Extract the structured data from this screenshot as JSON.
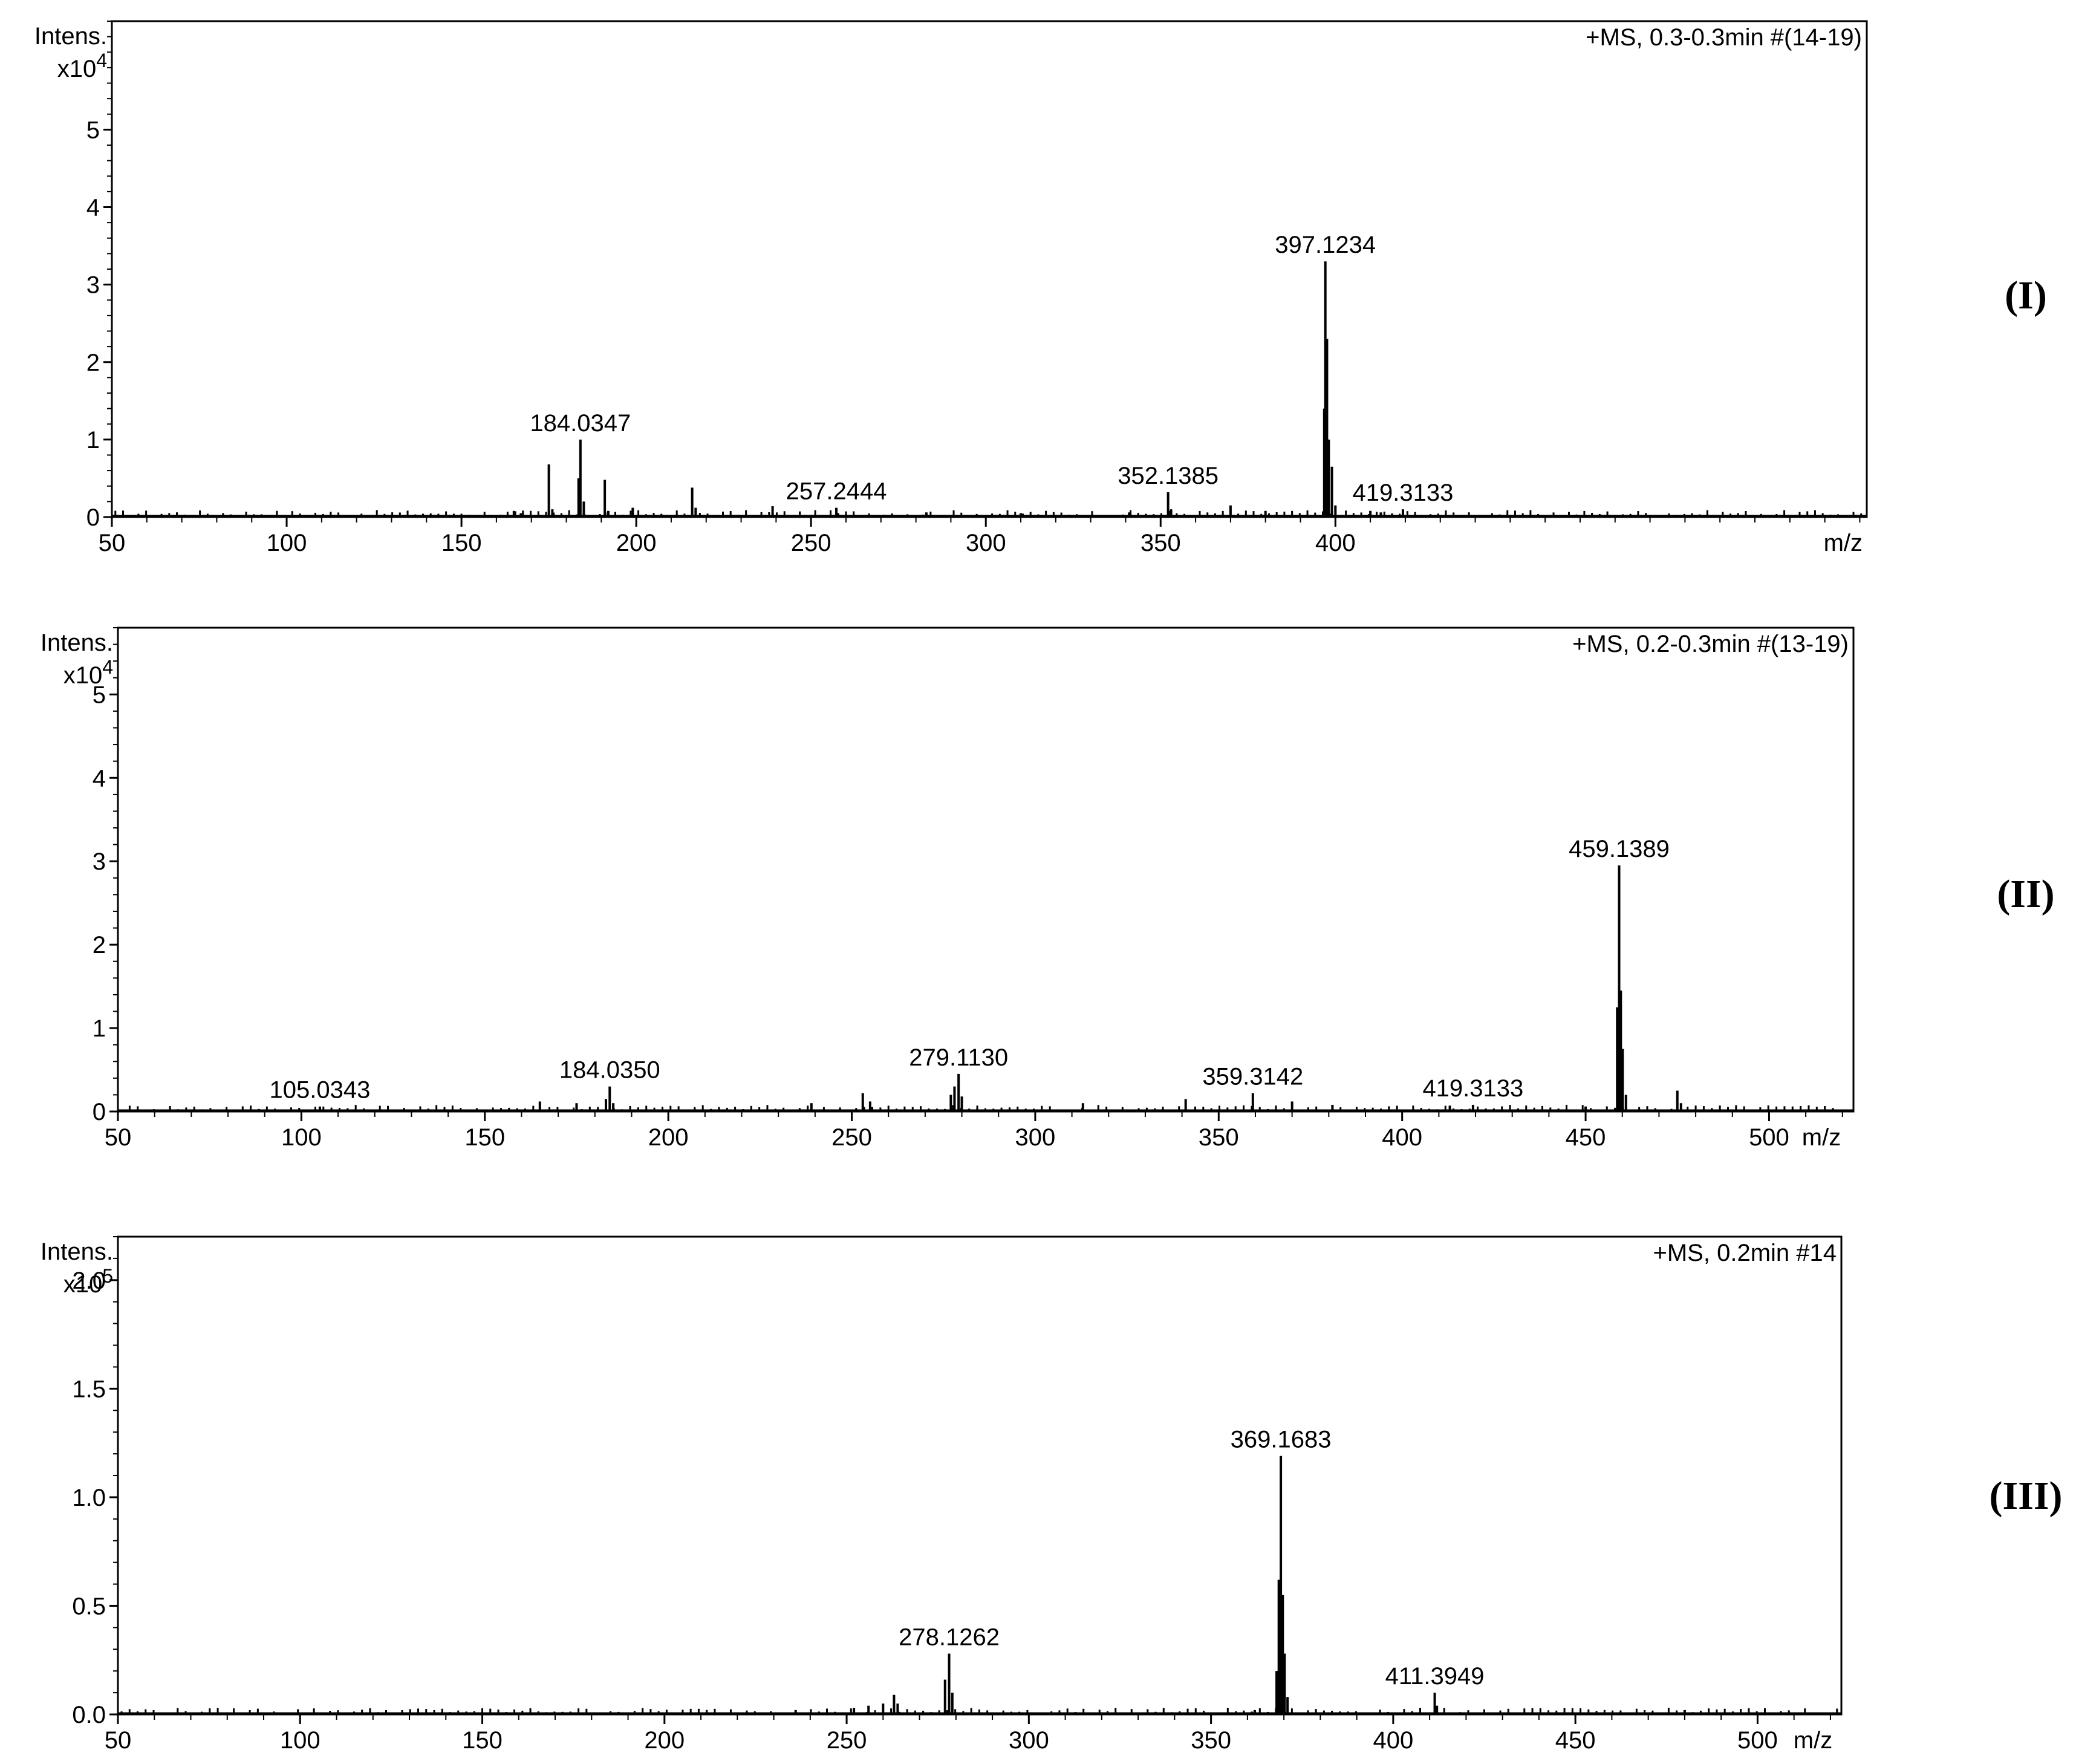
{
  "chart_data": [
    {
      "type": "line",
      "panel_label": "(I)",
      "annotation": "+MS, 0.3-0.3min #(14-19)",
      "ylabel": "Intens.",
      "y_multiplier": "x10",
      "y_exponent": "4",
      "xlabel": "m/z",
      "xlim": [
        50,
        552
      ],
      "ylim": [
        0,
        6.4
      ],
      "x_ticks": [
        50,
        100,
        150,
        200,
        250,
        300,
        350,
        400
      ],
      "x_tick_labels": [
        "50",
        "100",
        "150",
        "200",
        "250",
        "300",
        "350",
        "400"
      ],
      "y_ticks": [
        0,
        1,
        2,
        3,
        4,
        5
      ],
      "y_tick_labels": [
        "0",
        "1",
        "2",
        "3",
        "4",
        "5"
      ],
      "grid": false,
      "peak_labels": [
        {
          "text": "184.0347",
          "x": 184.0347,
          "y": 1.0
        },
        {
          "text": "257.2444",
          "x": 257.2444,
          "y": 0.12
        },
        {
          "text": "352.1385",
          "x": 352.1385,
          "y": 0.32
        },
        {
          "text": "397.1234",
          "x": 397.1234,
          "y": 3.3
        },
        {
          "text": "419.3133",
          "x": 419.3133,
          "y": 0.1
        }
      ],
      "peaks": [
        {
          "x": 165,
          "y": 0.08
        },
        {
          "x": 167,
          "y": 0.05
        },
        {
          "x": 175,
          "y": 0.68
        },
        {
          "x": 176,
          "y": 0.1
        },
        {
          "x": 183.5,
          "y": 0.5
        },
        {
          "x": 184.0347,
          "y": 1.0
        },
        {
          "x": 185,
          "y": 0.2
        },
        {
          "x": 191,
          "y": 0.48
        },
        {
          "x": 192,
          "y": 0.08
        },
        {
          "x": 199,
          "y": 0.12
        },
        {
          "x": 216,
          "y": 0.38
        },
        {
          "x": 217,
          "y": 0.12
        },
        {
          "x": 239,
          "y": 0.14
        },
        {
          "x": 257.2444,
          "y": 0.12
        },
        {
          "x": 283,
          "y": 0.06
        },
        {
          "x": 310,
          "y": 0.05
        },
        {
          "x": 341,
          "y": 0.06
        },
        {
          "x": 352.1385,
          "y": 0.32
        },
        {
          "x": 353,
          "y": 0.1
        },
        {
          "x": 370,
          "y": 0.15
        },
        {
          "x": 380,
          "y": 0.08
        },
        {
          "x": 396.8,
          "y": 1.4
        },
        {
          "x": 397.1234,
          "y": 3.3
        },
        {
          "x": 397.6,
          "y": 2.3
        },
        {
          "x": 398.1,
          "y": 1.0
        },
        {
          "x": 399,
          "y": 0.65
        },
        {
          "x": 400,
          "y": 0.15
        },
        {
          "x": 410,
          "y": 0.08
        },
        {
          "x": 413,
          "y": 0.06
        },
        {
          "x": 419.3133,
          "y": 0.1
        }
      ]
    },
    {
      "type": "line",
      "panel_label": "(II)",
      "annotation": "+MS, 0.2-0.3min #(13-19)",
      "ylabel": "Intens.",
      "y_multiplier": "x10",
      "y_exponent": "4",
      "xlabel": "m/z",
      "xlim": [
        50,
        523
      ],
      "ylim": [
        0,
        5.8
      ],
      "x_ticks": [
        50,
        100,
        150,
        200,
        250,
        300,
        350,
        400,
        450,
        500
      ],
      "x_tick_labels": [
        "50",
        "100",
        "150",
        "200",
        "250",
        "300",
        "350",
        "400",
        "450",
        "500"
      ],
      "y_ticks": [
        0,
        1,
        2,
        3,
        4,
        5
      ],
      "y_tick_labels": [
        "0",
        "1",
        "2",
        "3",
        "4",
        "5"
      ],
      "grid": false,
      "peak_labels": [
        {
          "text": "105.0343",
          "x": 105.0343,
          "y": 0.06
        },
        {
          "text": "184.0350",
          "x": 184.035,
          "y": 0.3
        },
        {
          "text": "279.1130",
          "x": 279.113,
          "y": 0.45
        },
        {
          "text": "359.3142",
          "x": 359.3142,
          "y": 0.22
        },
        {
          "text": "419.3133",
          "x": 419.3133,
          "y": 0.08
        },
        {
          "text": "459.1389",
          "x": 459.1389,
          "y": 2.95
        }
      ],
      "peaks": [
        {
          "x": 105.0343,
          "y": 0.06
        },
        {
          "x": 165,
          "y": 0.12
        },
        {
          "x": 175,
          "y": 0.1
        },
        {
          "x": 183,
          "y": 0.15
        },
        {
          "x": 184.035,
          "y": 0.3
        },
        {
          "x": 185,
          "y": 0.1
        },
        {
          "x": 239,
          "y": 0.1
        },
        {
          "x": 253,
          "y": 0.22
        },
        {
          "x": 255,
          "y": 0.12
        },
        {
          "x": 277,
          "y": 0.2
        },
        {
          "x": 278,
          "y": 0.3
        },
        {
          "x": 279.113,
          "y": 0.45
        },
        {
          "x": 280,
          "y": 0.18
        },
        {
          "x": 313,
          "y": 0.1
        },
        {
          "x": 341,
          "y": 0.15
        },
        {
          "x": 359.3142,
          "y": 0.22
        },
        {
          "x": 370,
          "y": 0.12
        },
        {
          "x": 381,
          "y": 0.08
        },
        {
          "x": 413,
          "y": 0.07
        },
        {
          "x": 419.3133,
          "y": 0.08
        },
        {
          "x": 450,
          "y": 0.06
        },
        {
          "x": 458.6,
          "y": 1.25
        },
        {
          "x": 459.1389,
          "y": 2.95
        },
        {
          "x": 459.6,
          "y": 1.45
        },
        {
          "x": 460.1,
          "y": 0.75
        },
        {
          "x": 461,
          "y": 0.2
        },
        {
          "x": 475,
          "y": 0.25
        },
        {
          "x": 476,
          "y": 0.1
        }
      ]
    },
    {
      "type": "line",
      "panel_label": "(III)",
      "annotation": "+MS, 0.2min #14",
      "ylabel": "Intens.",
      "y_multiplier": "x10",
      "y_exponent": "5",
      "xlabel": "m/z",
      "xlim": [
        50,
        523
      ],
      "ylim": [
        0,
        2.2
      ],
      "x_ticks": [
        50,
        100,
        150,
        200,
        250,
        300,
        350,
        400,
        450,
        500
      ],
      "x_tick_labels": [
        "50",
        "100",
        "150",
        "200",
        "250",
        "300",
        "350",
        "400",
        "450",
        "500"
      ],
      "y_ticks": [
        0.0,
        0.5,
        1.0,
        1.5,
        2.0
      ],
      "y_tick_labels": [
        "0.0",
        "0.5",
        "1.0",
        "1.5",
        "2.0"
      ],
      "grid": false,
      "peak_labels": [
        {
          "text": "278.1262",
          "x": 278.1262,
          "y": 0.28
        },
        {
          "text": "369.1683",
          "x": 369.1683,
          "y": 1.19
        },
        {
          "text": "411.3949",
          "x": 411.3949,
          "y": 0.1
        }
      ],
      "peaks": [
        {
          "x": 236,
          "y": 0.02
        },
        {
          "x": 252,
          "y": 0.03
        },
        {
          "x": 256,
          "y": 0.04
        },
        {
          "x": 260,
          "y": 0.05
        },
        {
          "x": 263,
          "y": 0.09
        },
        {
          "x": 264,
          "y": 0.05
        },
        {
          "x": 277,
          "y": 0.16
        },
        {
          "x": 278.1262,
          "y": 0.28
        },
        {
          "x": 279,
          "y": 0.1
        },
        {
          "x": 362,
          "y": 0.02
        },
        {
          "x": 368,
          "y": 0.2
        },
        {
          "x": 368.6,
          "y": 0.62
        },
        {
          "x": 369.1683,
          "y": 1.19
        },
        {
          "x": 369.7,
          "y": 0.55
        },
        {
          "x": 370.2,
          "y": 0.28
        },
        {
          "x": 371,
          "y": 0.08
        },
        {
          "x": 411.3949,
          "y": 0.1
        },
        {
          "x": 412,
          "y": 0.04
        },
        {
          "x": 480,
          "y": 0.02
        }
      ]
    }
  ]
}
